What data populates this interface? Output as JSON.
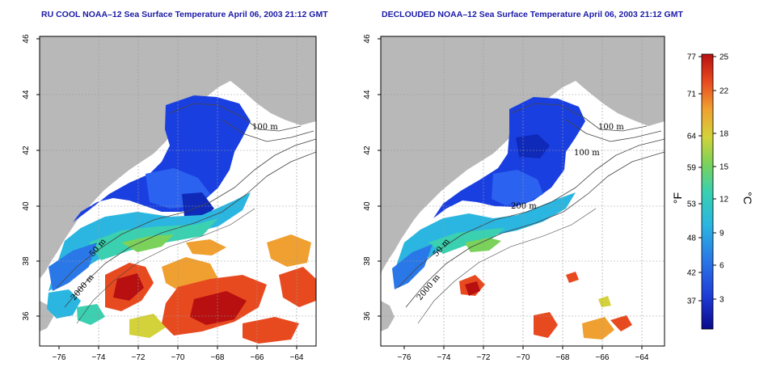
{
  "panels": [
    {
      "title": "RU COOL NOAA–12 Sea Surface Temperature April 06, 2003 21:12 GMT",
      "contour_labels": [
        "100 m",
        "50 m",
        "2000 m"
      ]
    },
    {
      "title": "DECLOUDED NOAA–12 Sea Surface Temperature April 06, 2003 21:12 GMT",
      "contour_labels": [
        "100 m",
        "100 m",
        "200 m",
        "50 m",
        "2000 m"
      ]
    }
  ],
  "axes": {
    "x_ticks": [
      "−76",
      "−74",
      "−72",
      "−70",
      "−68",
      "−66",
      "−64"
    ],
    "y_ticks": [
      "36",
      "38",
      "40",
      "42",
      "44",
      "46"
    ]
  },
  "colorbar": {
    "fahrenheit_ticks": [
      "77",
      "71",
      "64",
      "59",
      "53",
      "48",
      "42",
      "37"
    ],
    "celsius_ticks": [
      "25",
      "22",
      "18",
      "15",
      "12",
      "9",
      "6",
      "3"
    ],
    "left_unit": "°F",
    "right_unit": "°C",
    "colors": [
      "#0a0a8c",
      "#1e3cd6",
      "#2a78e8",
      "#2ab6e0",
      "#3ad0b0",
      "#7ad25a",
      "#d4d23a",
      "#f0a030",
      "#e84a20",
      "#b80f10"
    ]
  },
  "colors": {
    "land": "#b8b8b8",
    "ocean": "#ffffff",
    "title_text": "#1a1aa8",
    "grid": "#9a9a9a"
  }
}
